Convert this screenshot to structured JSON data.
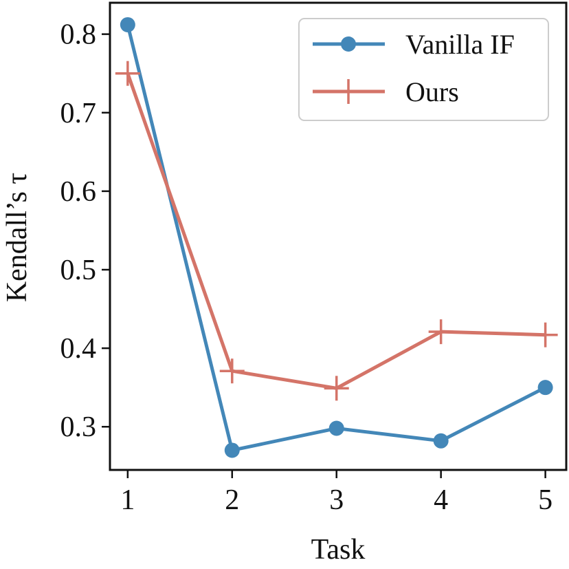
{
  "chart_data": {
    "type": "line",
    "x": [
      1,
      2,
      3,
      4,
      5
    ],
    "xticks": [
      "1",
      "2",
      "3",
      "4",
      "5"
    ],
    "yticks": [
      "0.3",
      "0.4",
      "0.5",
      "0.6",
      "0.7",
      "0.8"
    ],
    "ytick_values": [
      0.3,
      0.4,
      0.5,
      0.6,
      0.7,
      0.8
    ],
    "xlim": [
      0.83,
      5.2
    ],
    "ylim": [
      0.245,
      0.84
    ],
    "xlabel": "Task",
    "ylabel": "Kendall’s τ",
    "grid": false,
    "legend_position": "top-right",
    "series": [
      {
        "name": "Vanilla IF",
        "color": "#4387b8",
        "marker": "circle",
        "values": [
          0.812,
          0.27,
          0.298,
          0.282,
          0.35
        ]
      },
      {
        "name": "Ours",
        "color": "#d47468",
        "marker": "plus",
        "values": [
          0.75,
          0.371,
          0.349,
          0.421,
          0.417
        ]
      }
    ]
  }
}
